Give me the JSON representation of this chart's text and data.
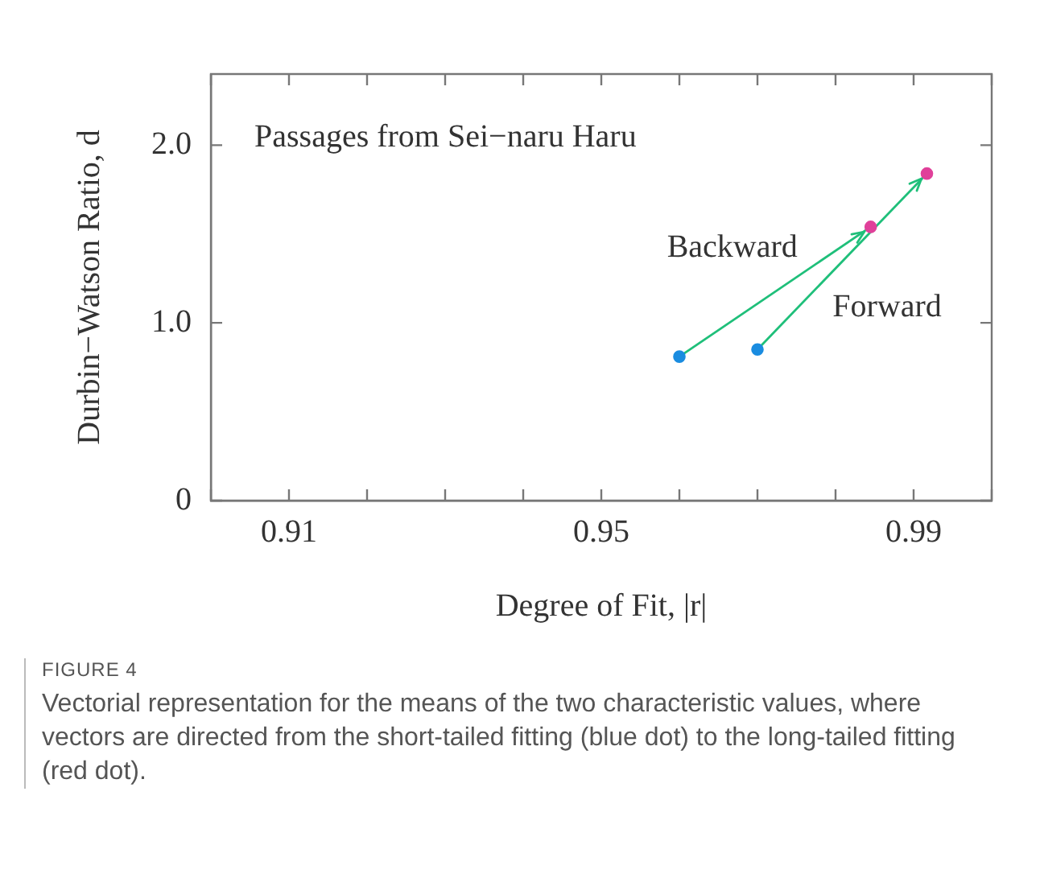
{
  "chart_data": {
    "type": "line",
    "title": "Passages from Sei−naru Haru",
    "xlabel": "Degree of Fit, |r|",
    "ylabel": "Durbin−Watson Ratio, d",
    "xlim": [
      0.9,
      1.0
    ],
    "xticks": [
      {
        "value": 0.9,
        "label": null
      },
      0.91,
      {
        "value": 0.92,
        "label": null
      },
      {
        "value": 0.93,
        "label": null
      },
      {
        "value": 0.94,
        "label": null
      },
      0.95,
      {
        "value": 0.96,
        "label": null
      },
      {
        "value": 0.97,
        "label": null
      },
      {
        "value": 0.98,
        "label": null
      },
      0.99,
      {
        "value": 1.0,
        "label": null
      }
    ],
    "ylim": [
      0,
      2.4
    ],
    "yticks": [
      0,
      {
        "value": 1,
        "label": "1.0"
      },
      {
        "value": 2,
        "label": "2.0"
      }
    ],
    "marker": "circle",
    "line_style": "solid",
    "series": [
      {
        "name": "Backward",
        "color": "#1fbf7a",
        "colors": [
          "#1a8ce0",
          "#e0409a"
        ],
        "x": [
          0.96,
          0.9845
        ],
        "values": [
          0.81,
          1.54
        ]
      },
      {
        "name": "Forward",
        "color": "#1fbf7a",
        "colors": [
          "#1a8ce0",
          "#e0409a"
        ],
        "x": [
          0.97,
          0.9917
        ],
        "values": [
          0.85,
          1.84
        ]
      }
    ],
    "annotations": [
      "FIGURE 4",
      "Vectorial representation for the means of the two characteristic values, where vectors are directed from the short-tailed fitting (blue dot) to the long-tailed fitting (red dot)."
    ]
  }
}
